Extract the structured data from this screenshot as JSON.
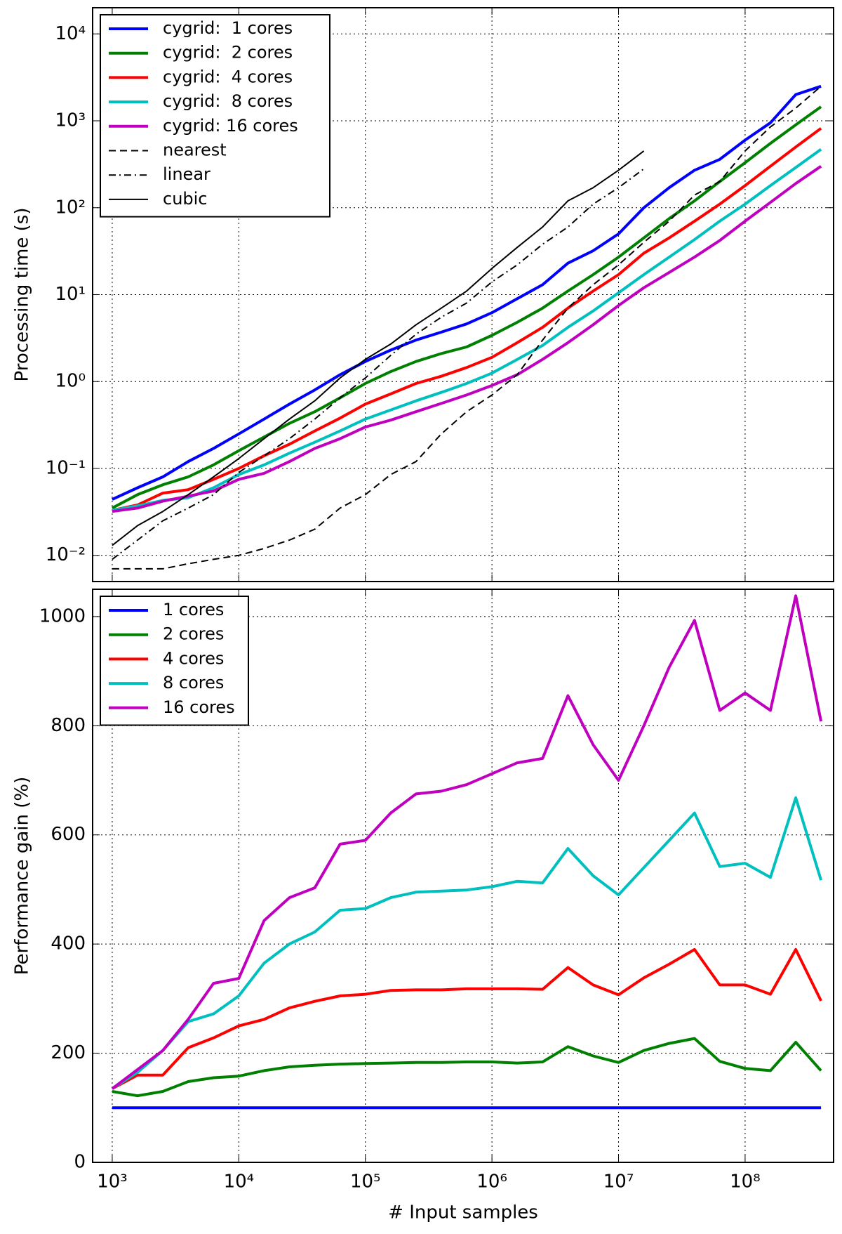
{
  "chart_data": [
    {
      "type": "line",
      "ylabel": "Processing time (s)",
      "xscale": "log",
      "yscale": "log",
      "grid": true,
      "legend": "upper left",
      "x": [
        1000,
        1585,
        2512,
        3981,
        6310,
        10000,
        15849,
        25119,
        39811,
        63096,
        100000,
        158489,
        251189,
        398107,
        630957,
        1000000,
        1584893,
        2511886,
        3981072,
        6309573,
        10000000,
        15848932,
        25118864,
        39810717,
        63095734,
        100000000,
        158489319,
        251188643,
        398107171
      ],
      "xlim": [
        700,
        500000000
      ],
      "xticks": [
        1000,
        10000,
        100000,
        1000000,
        10000000,
        100000000
      ],
      "ylim": [
        0.005,
        20000
      ],
      "yticks": [
        {
          "value": 0.01,
          "label": "10⁻²"
        },
        {
          "value": 0.1,
          "label": "10⁻¹"
        },
        {
          "value": 1,
          "label": "10⁰"
        },
        {
          "value": 10,
          "label": "10¹"
        },
        {
          "value": 100,
          "label": "10²"
        },
        {
          "value": 1000,
          "label": "10³"
        },
        {
          "value": 10000,
          "label": "10⁴"
        }
      ],
      "series": [
        {
          "name": "cygrid:  1 cores",
          "color": "#0000ff",
          "linestyle": "solid",
          "values": [
            0.044,
            0.06,
            0.08,
            0.12,
            0.17,
            0.25,
            0.37,
            0.55,
            0.8,
            1.2,
            1.7,
            2.3,
            3.0,
            3.7,
            4.6,
            6.2,
            9,
            13,
            23,
            32,
            50,
            100,
            170,
            270,
            360,
            600,
            950,
            2000,
            2500
          ]
        },
        {
          "name": "cygrid:  2 cores",
          "color": "#008000",
          "linestyle": "solid",
          "values": [
            0.035,
            0.05,
            0.065,
            0.08,
            0.11,
            0.16,
            0.23,
            0.33,
            0.45,
            0.65,
            0.95,
            1.3,
            1.7,
            2.1,
            2.5,
            3.4,
            4.8,
            7,
            11,
            17,
            27,
            45,
            75,
            120,
            200,
            330,
            550,
            900,
            1450
          ]
        },
        {
          "name": "cygrid:  4 cores",
          "color": "#ff0000",
          "linestyle": "solid",
          "values": [
            0.033,
            0.038,
            0.052,
            0.057,
            0.075,
            0.1,
            0.14,
            0.19,
            0.27,
            0.38,
            0.55,
            0.72,
            0.95,
            1.15,
            1.45,
            1.9,
            2.8,
            4.2,
            7,
            11,
            17,
            30,
            45,
            70,
            110,
            180,
            300,
            500,
            820
          ]
        },
        {
          "name": "cygrid:  8 cores",
          "color": "#00bfbf",
          "linestyle": "solid",
          "values": [
            0.033,
            0.037,
            0.043,
            0.046,
            0.06,
            0.085,
            0.11,
            0.15,
            0.2,
            0.27,
            0.37,
            0.47,
            0.6,
            0.75,
            0.95,
            1.25,
            1.8,
            2.6,
            4.2,
            6.5,
            10.5,
            17,
            27,
            43,
            70,
            110,
            180,
            290,
            470
          ]
        },
        {
          "name": "cygrid: 16 cores",
          "color": "#bf00bf",
          "linestyle": "solid",
          "values": [
            0.032,
            0.035,
            0.042,
            0.048,
            0.055,
            0.075,
            0.088,
            0.12,
            0.17,
            0.22,
            0.3,
            0.36,
            0.45,
            0.56,
            0.7,
            0.9,
            1.2,
            1.8,
            2.8,
            4.5,
            7.5,
            12,
            18,
            27,
            42,
            70,
            115,
            190,
            300
          ]
        },
        {
          "name": "nearest",
          "color": "#000000",
          "linestyle": "dashed",
          "values": [
            0.007,
            0.007,
            0.007,
            0.008,
            0.009,
            0.01,
            0.012,
            0.015,
            0.02,
            0.035,
            0.05,
            0.085,
            0.12,
            0.25,
            0.45,
            0.7,
            1.2,
            3,
            7,
            13,
            22,
            40,
            70,
            140,
            200,
            450,
            850,
            1400,
            2500
          ]
        },
        {
          "name": "linear",
          "color": "#000000",
          "linestyle": "dashdot",
          "values": [
            0.009,
            0.015,
            0.025,
            0.035,
            0.05,
            0.09,
            0.14,
            0.22,
            0.37,
            0.65,
            1.1,
            2,
            3.5,
            5.5,
            8,
            14,
            22,
            38,
            60,
            110,
            170,
            280,
            null,
            null,
            null,
            null,
            null,
            null,
            null
          ]
        },
        {
          "name": "cubic",
          "color": "#000000",
          "linestyle": "thin",
          "values": [
            0.013,
            0.022,
            0.032,
            0.05,
            0.08,
            0.13,
            0.22,
            0.37,
            0.6,
            1.1,
            1.8,
            2.7,
            4.5,
            7,
            11,
            20,
            35,
            60,
            120,
            170,
            270,
            450,
            null,
            null,
            null,
            null,
            null,
            null,
            null
          ]
        }
      ]
    },
    {
      "type": "line",
      "ylabel": "Performance gain (%)",
      "xlabel": "# Input samples",
      "xscale": "log",
      "grid": true,
      "legend": "upper left",
      "x": [
        1000,
        1585,
        2512,
        3981,
        6310,
        10000,
        15849,
        25119,
        39811,
        63096,
        100000,
        158489,
        251189,
        398107,
        630957,
        1000000,
        1584893,
        2511886,
        3981072,
        6309573,
        10000000,
        15848932,
        25118864,
        39810717,
        63095734,
        100000000,
        158489319,
        251188643,
        398107171
      ],
      "xlim": [
        700,
        500000000
      ],
      "xticks": [
        {
          "value": 1000,
          "label": "10³"
        },
        {
          "value": 10000,
          "label": "10⁴"
        },
        {
          "value": 100000,
          "label": "10⁵"
        },
        {
          "value": 1000000,
          "label": "10⁶"
        },
        {
          "value": 10000000,
          "label": "10⁷"
        },
        {
          "value": 100000000,
          "label": "10⁸"
        }
      ],
      "ylim": [
        0,
        1050
      ],
      "yticks": [
        0,
        200,
        400,
        600,
        800,
        1000
      ],
      "series": [
        {
          "name": "1 cores",
          "color": "#0000ff",
          "linestyle": "solid",
          "values": [
            100,
            100,
            100,
            100,
            100,
            100,
            100,
            100,
            100,
            100,
            100,
            100,
            100,
            100,
            100,
            100,
            100,
            100,
            100,
            100,
            100,
            100,
            100,
            100,
            100,
            100,
            100,
            100,
            100
          ]
        },
        {
          "name": "2 cores",
          "color": "#008000",
          "linestyle": "solid",
          "values": [
            130,
            122,
            130,
            148,
            155,
            158,
            168,
            175,
            178,
            180,
            181,
            182,
            183,
            183,
            184,
            184,
            182,
            184,
            212,
            195,
            183,
            205,
            218,
            227,
            185,
            172,
            168,
            220,
            168
          ]
        },
        {
          "name": "4 cores",
          "color": "#ff0000",
          "linestyle": "solid",
          "values": [
            135,
            160,
            160,
            210,
            228,
            250,
            262,
            283,
            295,
            305,
            308,
            315,
            316,
            316,
            318,
            318,
            318,
            317,
            357,
            325,
            307,
            338,
            363,
            390,
            325,
            325,
            308,
            390,
            296
          ]
        },
        {
          "name": "8 cores",
          "color": "#00bfbf",
          "linestyle": "solid",
          "values": [
            135,
            165,
            205,
            258,
            272,
            305,
            365,
            400,
            422,
            462,
            465,
            485,
            495,
            497,
            499,
            505,
            515,
            512,
            575,
            525,
            490,
            540,
            590,
            640,
            542,
            548,
            522,
            668,
            517
          ]
        },
        {
          "name": "16 cores",
          "color": "#bf00bf",
          "linestyle": "solid",
          "values": [
            135,
            170,
            205,
            262,
            328,
            337,
            443,
            485,
            503,
            583,
            590,
            640,
            675,
            680,
            692,
            712,
            732,
            740,
            855,
            765,
            700,
            800,
            907,
            993,
            828,
            860,
            828,
            1038,
            808
          ]
        }
      ]
    }
  ]
}
